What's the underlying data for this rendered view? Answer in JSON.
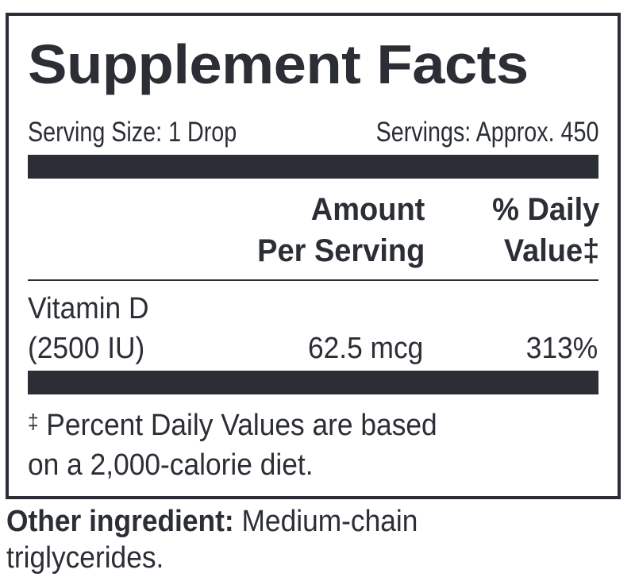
{
  "label": {
    "title": "Supplement Facts",
    "serving_size": "Serving Size: 1 Drop",
    "servings": "Servings: Approx. 450",
    "columns": {
      "amount_line1": "Amount",
      "amount_line2": "Per Serving",
      "dv_line1": "% Daily",
      "dv_line2": "Value‡"
    },
    "nutrients": [
      {
        "name_line1": "Vitamin D",
        "name_line2": "(2500 IU)",
        "amount": "62.5 mcg",
        "daily_value": "313%"
      }
    ],
    "footnote": {
      "symbol": "‡",
      "line1": " Percent Daily Values are based",
      "line2": "on a 2,000-calorie diet."
    }
  },
  "other_ingredients": {
    "label": "Other ingredient:",
    "line1": " Medium-chain",
    "line2": "triglycerides."
  },
  "colors": {
    "ink": "#2b2e35",
    "background": "#ffffff"
  }
}
